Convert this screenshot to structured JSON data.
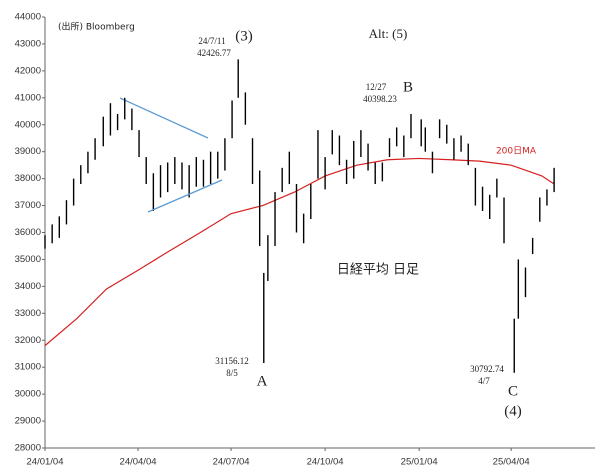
{
  "chart_data": {
    "type": "hilo",
    "xlim": [
      "24/01/04",
      "25/06/25"
    ],
    "xticks": [
      "24/01/04",
      "24/04/04",
      "24/07/04",
      "24/10/04",
      "25/01/04",
      "25/04/04"
    ],
    "ylim": [
      28000,
      44000
    ],
    "yticks": [
      28000,
      29000,
      30000,
      31000,
      32000,
      33000,
      34000,
      35000,
      36000,
      37000,
      38000,
      39000,
      40000,
      41000,
      42000,
      43000,
      44000
    ],
    "price": {
      "color": "#000000",
      "x": [
        "24/01/04",
        "24/01/11",
        "24/01/18",
        "24/01/25",
        "24/02/01",
        "24/02/08",
        "24/02/15",
        "24/02/22",
        "24/03/01",
        "24/03/08",
        "24/03/15",
        "24/03/22",
        "24/03/29",
        "24/04/05",
        "24/04/12",
        "24/04/19",
        "24/04/26",
        "24/05/03",
        "24/05/10",
        "24/05/17",
        "24/05/24",
        "24/05/31",
        "24/06/07",
        "24/06/14",
        "24/06/21",
        "24/06/28",
        "24/07/05",
        "24/07/11",
        "24/07/18",
        "24/07/25",
        "24/08/01",
        "24/08/05",
        "24/08/09",
        "24/08/16",
        "24/08/23",
        "24/08/30",
        "24/09/06",
        "24/09/13",
        "24/09/20",
        "24/09/27",
        "24/10/04",
        "24/10/11",
        "24/10/18",
        "24/10/25",
        "24/11/01",
        "24/11/08",
        "24/11/15",
        "24/11/22",
        "24/11/29",
        "24/12/06",
        "24/12/13",
        "24/12/20",
        "24/12/27",
        "25/01/06",
        "25/01/10",
        "25/01/17",
        "25/01/24",
        "25/01/31",
        "25/02/07",
        "25/02/14",
        "25/02/21",
        "25/02/28",
        "25/03/07",
        "25/03/14",
        "25/03/21",
        "25/03/28",
        "25/04/07",
        "25/04/11",
        "25/04/18",
        "25/04/25",
        "25/05/02",
        "25/05/09",
        "25/05/16"
      ],
      "high": [
        35900,
        36300,
        36600,
        37200,
        38000,
        38500,
        39000,
        39500,
        40300,
        40800,
        40400,
        41000,
        40600,
        39800,
        38800,
        38200,
        38500,
        38600,
        38800,
        38600,
        38500,
        38800,
        38700,
        39000,
        39000,
        39500,
        40900,
        42426.77,
        41200,
        39500,
        38300,
        34500,
        35900,
        37500,
        38400,
        39000,
        37800,
        36700,
        37800,
        39800,
        38800,
        39800,
        39600,
        38700,
        39400,
        39800,
        39300,
        38600,
        38600,
        39500,
        39900,
        39600,
        40398.23,
        40200,
        39900,
        39000,
        40200,
        40000,
        39500,
        39600,
        39300,
        38400,
        37700,
        37400,
        38000,
        37300,
        32800,
        35000,
        34700,
        35800,
        37300,
        37600,
        38400
      ],
      "low": [
        35400,
        35600,
        35800,
        36300,
        37000,
        37800,
        38200,
        38700,
        39200,
        39600,
        39800,
        40200,
        39800,
        38800,
        37800,
        36800,
        37300,
        37500,
        37800,
        37600,
        37300,
        37700,
        37700,
        37800,
        38000,
        38300,
        39500,
        41000,
        40000,
        37800,
        35500,
        31156.12,
        34200,
        35500,
        37500,
        37800,
        36000,
        35600,
        36500,
        38000,
        37600,
        38900,
        38500,
        37800,
        38000,
        38800,
        38300,
        37800,
        37900,
        38800,
        39200,
        38800,
        39500,
        39200,
        39000,
        38200,
        39500,
        39300,
        38700,
        39000,
        38500,
        37000,
        36800,
        36500,
        37300,
        35600,
        30792.74,
        32800,
        33600,
        35200,
        36400,
        37000,
        37500
      ]
    },
    "series": [
      {
        "name": "200日MA",
        "color": "#d62020",
        "x": [
          "24/01/04",
          "24/02/04",
          "24/03/04",
          "24/04/04",
          "24/05/04",
          "24/06/04",
          "24/07/04",
          "24/08/04",
          "24/09/04",
          "24/10/04",
          "24/11/04",
          "24/12/04",
          "25/01/04",
          "25/02/04",
          "25/03/04",
          "25/04/04",
          "25/05/04",
          "25/05/16"
        ],
        "values": [
          31800,
          32800,
          33900,
          34600,
          35300,
          36000,
          36700,
          37000,
          37500,
          38100,
          38500,
          38700,
          38750,
          38700,
          38650,
          38500,
          38100,
          37800
        ]
      }
    ],
    "annotations": [
      "(出所) Bloomberg",
      "24/7/11",
      "42426.77",
      "(3)",
      "Alt: (5)",
      "12/27",
      "40398.23",
      "B",
      "日経平均 日足",
      "31156.12",
      "8/5",
      "A",
      "30792.74",
      "4/7",
      "C",
      "(4)"
    ]
  }
}
